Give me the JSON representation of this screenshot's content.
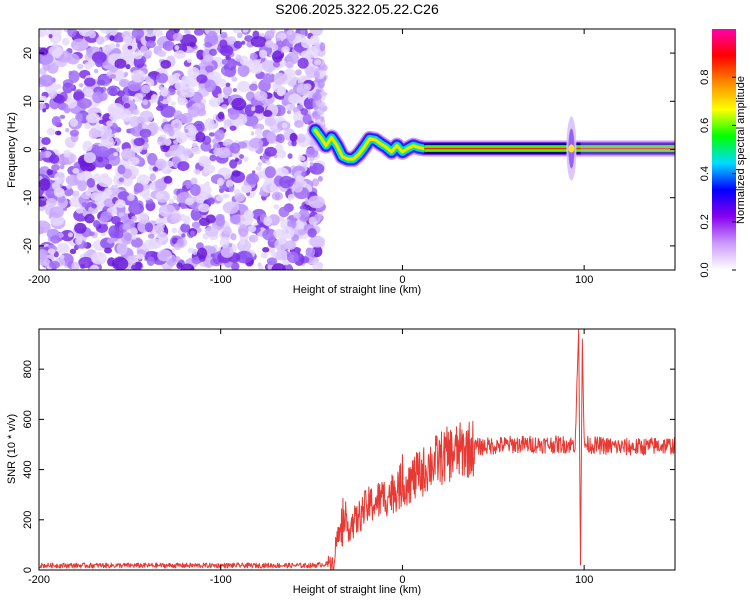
{
  "title": "S206.2025.322.05.22.C26",
  "chart_data": [
    {
      "type": "heatmap",
      "xlabel": "Height of straight line (km)",
      "ylabel": "Frequency (Hz)",
      "xlim": [
        -200,
        150
      ],
      "ylim": [
        -25,
        25
      ],
      "xticks": [
        -200,
        -100,
        0,
        100
      ],
      "yticks": [
        -20,
        -10,
        0,
        10,
        20
      ],
      "noise_region_x": [
        -200,
        -48
      ],
      "tone_track": {
        "x": [
          -48,
          -45,
          -42,
          -39,
          -36,
          -33,
          -30,
          -27,
          -24,
          -21,
          -18,
          -15,
          -12,
          -9,
          -6,
          -3,
          0,
          3,
          6,
          9,
          12,
          15,
          20,
          150
        ],
        "freq": [
          4,
          2.5,
          0.8,
          2.5,
          0.8,
          -1.5,
          -2.0,
          -2.0,
          -1.0,
          0.5,
          2.2,
          2.0,
          1.2,
          0.5,
          -0.5,
          0.8,
          -0.5,
          0.2,
          0.8,
          0.4,
          0.2,
          0.2,
          0.2,
          0.2
        ]
      },
      "spike_x": 93,
      "colorbar": {
        "label": "Normalized spectral amplitude",
        "range": [
          0,
          1
        ],
        "ticks": [
          "0.0",
          "0.2",
          "0.4",
          "0.6",
          "0.8"
        ],
        "colors": [
          "#ffffff",
          "#cc99ff",
          "#8800ee",
          "#0000ff",
          "#00ddff",
          "#00ff00",
          "#ffff00",
          "#ff8800",
          "#ff0000",
          "#ff00aa"
        ]
      }
    },
    {
      "type": "line",
      "xlabel": "Height of straight line (km)",
      "ylabel": "SNR (10 * v/v)",
      "xlim": [
        -200,
        150
      ],
      "ylim": [
        0,
        960
      ],
      "xticks": [
        -200,
        -100,
        0,
        100
      ],
      "yticks": [
        0,
        200,
        400,
        600,
        800
      ],
      "series": [
        {
          "name": "SNR",
          "color": "#e83a34",
          "x": [
            -200,
            -150,
            -100,
            -50,
            -40,
            -38,
            -36,
            -33,
            -30,
            -25,
            -20,
            -15,
            -10,
            -5,
            0,
            5,
            10,
            15,
            20,
            25,
            30,
            35,
            40,
            50,
            60,
            70,
            80,
            90,
            95,
            97,
            98,
            99,
            100,
            110,
            120,
            130,
            140,
            150
          ],
          "values": [
            18,
            18,
            18,
            18,
            25,
            30,
            130,
            150,
            170,
            200,
            250,
            270,
            290,
            310,
            340,
            360,
            380,
            420,
            440,
            460,
            470,
            480,
            490,
            495,
            500,
            500,
            500,
            500,
            500,
            960,
            20,
            920,
            500,
            495,
            490,
            490,
            495,
            495
          ]
        }
      ]
    }
  ]
}
